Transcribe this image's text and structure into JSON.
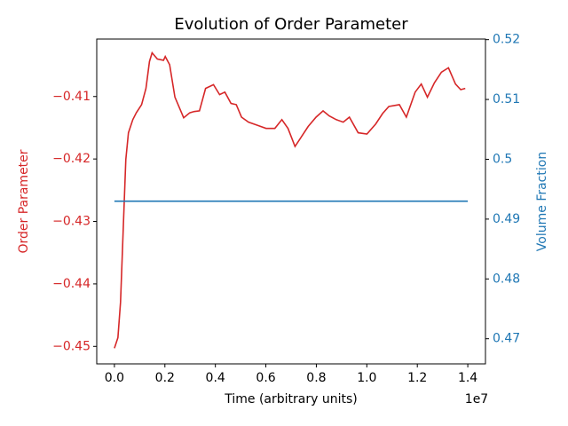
{
  "chart_data": {
    "type": "line",
    "title": "Evolution of Order Parameter",
    "x_label": "Time (arbitrary units)",
    "x_offset_label": "1e7",
    "y_label": "Order Parameter",
    "y2_label": "Volume Fraction",
    "y_color": "#d62728",
    "y2_color": "#1f77b4",
    "xlim": [
      -700000,
      14700000
    ],
    "xticks": [
      {
        "value": 0,
        "label": "0.0"
      },
      {
        "value": 2000000,
        "label": "0.2"
      },
      {
        "value": 4000000,
        "label": "0.4"
      },
      {
        "value": 6000000,
        "label": "0.6"
      },
      {
        "value": 8000000,
        "label": "0.8"
      },
      {
        "value": 10000000,
        "label": "1.0"
      },
      {
        "value": 12000000,
        "label": "1.2"
      },
      {
        "value": 14000000,
        "label": "1.4"
      }
    ],
    "ylim": [
      -0.4528,
      -0.4008
    ],
    "yticks": [
      {
        "value": -0.45,
        "label": "−0.45"
      },
      {
        "value": -0.44,
        "label": "−0.44"
      },
      {
        "value": -0.43,
        "label": "−0.43"
      },
      {
        "value": -0.42,
        "label": "−0.42"
      },
      {
        "value": -0.41,
        "label": "−0.41"
      }
    ],
    "y2lim": [
      0.4658,
      0.5201
    ],
    "y2ticks": [
      0.47,
      0.48,
      0.49,
      0.5,
      0.51,
      0.52
    ],
    "series": [
      {
        "name": "Order Parameter",
        "color": "#d62728",
        "x": [
          0,
          139000,
          243000,
          347000,
          452000,
          556000,
          729000,
          868000,
          1077000,
          1250000,
          1389000,
          1493000,
          1702000,
          1945000,
          2014000,
          2188000,
          2397000,
          2744000,
          2987000,
          3161000,
          3369000,
          3612000,
          3925000,
          4168000,
          4376000,
          4619000,
          4828000,
          5036000,
          5314000,
          5662000,
          6009000,
          6356000,
          6634000,
          6877000,
          7155000,
          7398000,
          7676000,
          7989000,
          8267000,
          8510000,
          8788000,
          9066000,
          9309000,
          9656000,
          10004000,
          10351000,
          10629000,
          10872000,
          11289000,
          11566000,
          11914000,
          12157000,
          12400000,
          12678000,
          12956000,
          13234000,
          13512000,
          13720000,
          13900000
        ],
        "values": [
          -0.4503,
          -0.4486,
          -0.4429,
          -0.4315,
          -0.4201,
          -0.4158,
          -0.4137,
          -0.4126,
          -0.4113,
          -0.4087,
          -0.4044,
          -0.403,
          -0.404,
          -0.4042,
          -0.4036,
          -0.4049,
          -0.4101,
          -0.4134,
          -0.4126,
          -0.4124,
          -0.4123,
          -0.4087,
          -0.4081,
          -0.4097,
          -0.4093,
          -0.4111,
          -0.4113,
          -0.4133,
          -0.4141,
          -0.4146,
          -0.4151,
          -0.4151,
          -0.4137,
          -0.4151,
          -0.418,
          -0.4165,
          -0.4148,
          -0.4133,
          -0.4123,
          -0.4131,
          -0.4137,
          -0.4141,
          -0.4133,
          -0.4158,
          -0.416,
          -0.4144,
          -0.4127,
          -0.4116,
          -0.4113,
          -0.4133,
          -0.4093,
          -0.408,
          -0.4101,
          -0.4078,
          -0.4061,
          -0.4054,
          -0.408,
          -0.4089,
          -0.4087
        ]
      },
      {
        "name": "Volume Fraction",
        "color": "#1f77b4",
        "axis": "y2",
        "x": [
          0,
          14000000
        ],
        "values": [
          0.493,
          0.493
        ]
      }
    ]
  }
}
